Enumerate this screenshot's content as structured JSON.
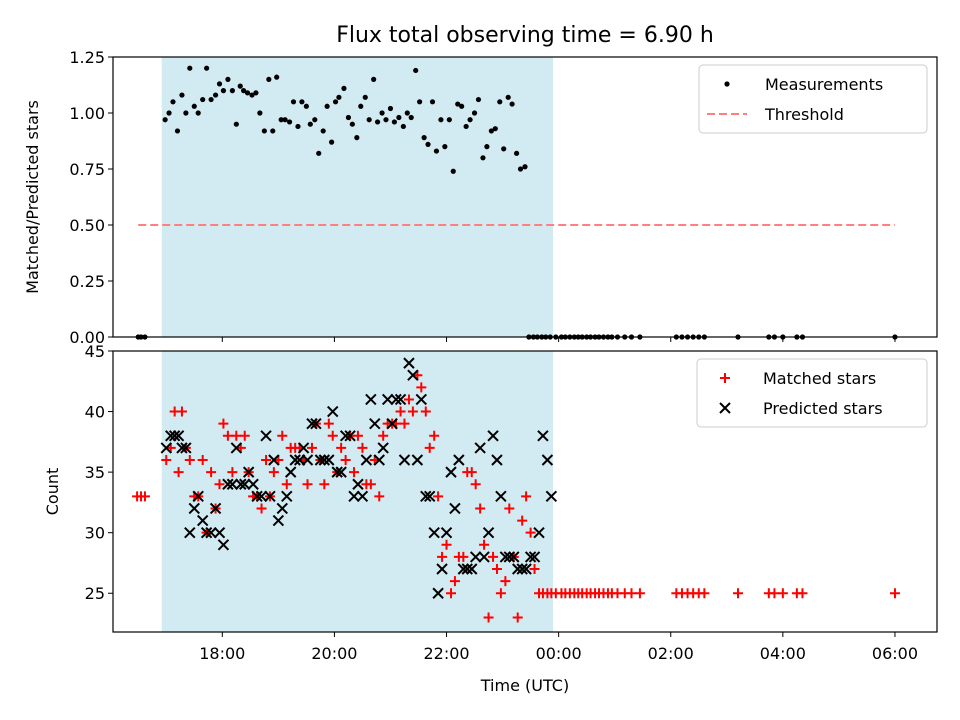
{
  "figure_title": "Flux total observing time = 6.90 h",
  "colors": {
    "span": "#add8e6",
    "measurement": "#000000",
    "threshold": "#ff7f7f",
    "matched": "#ff0000",
    "predicted": "#000000"
  },
  "chart_data": [
    {
      "type": "scatter",
      "title": "Flux total observing time = 6.90 h",
      "xlabel": "",
      "ylabel": "Matched/Predicted stars",
      "xlim": [
        16.05,
        30.75
      ],
      "ylim": [
        0,
        1.25
      ],
      "yticks": [
        "0.00",
        "0.25",
        "0.50",
        "0.75",
        "1.00",
        "1.25"
      ],
      "ytick_values": [
        0,
        0.25,
        0.5,
        0.75,
        1.0,
        1.25
      ],
      "grid": false,
      "legend_position": "top-right",
      "shaded_span": [
        16.92,
        23.9
      ],
      "series": [
        {
          "name": "Measurements",
          "marker": "dot",
          "x": [
            16.5,
            16.55,
            16.62,
            16.98,
            17.05,
            17.12,
            17.2,
            17.28,
            17.35,
            17.42,
            17.5,
            17.57,
            17.65,
            17.72,
            17.8,
            17.88,
            17.95,
            18.02,
            18.1,
            18.18,
            18.25,
            18.32,
            18.38,
            18.45,
            18.53,
            18.6,
            18.67,
            18.75,
            18.83,
            18.9,
            18.97,
            19.05,
            19.12,
            19.2,
            19.27,
            19.35,
            19.42,
            19.5,
            19.57,
            19.65,
            19.72,
            19.8,
            19.87,
            19.95,
            20.02,
            20.08,
            20.17,
            20.25,
            20.32,
            20.4,
            20.47,
            20.55,
            20.62,
            20.7,
            20.77,
            20.85,
            20.92,
            21.0,
            21.07,
            21.15,
            21.23,
            21.3,
            21.37,
            21.45,
            21.52,
            21.6,
            21.67,
            21.75,
            21.82,
            21.9,
            21.97,
            22.05,
            22.12,
            22.2,
            22.27,
            22.35,
            22.42,
            22.5,
            22.57,
            22.65,
            22.72,
            22.8,
            22.87,
            22.95,
            23.02,
            23.1,
            23.17,
            23.25,
            23.32,
            23.4,
            23.47,
            23.55,
            23.62,
            23.7,
            23.77,
            23.85,
            23.95,
            24.05,
            24.12,
            24.2,
            24.28,
            24.35,
            24.42,
            24.5,
            24.57,
            24.65,
            24.72,
            24.8,
            24.88,
            24.95,
            25.05,
            25.18,
            25.3,
            25.45,
            26.1,
            26.2,
            26.3,
            26.4,
            26.5,
            26.6,
            27.2,
            27.75,
            27.85,
            28.0,
            28.25,
            28.35,
            30.0
          ],
          "y": [
            0,
            0,
            0,
            0.97,
            1.0,
            1.05,
            0.92,
            1.08,
            1.0,
            1.2,
            1.03,
            1.0,
            1.06,
            1.2,
            1.06,
            1.08,
            1.13,
            1.1,
            1.15,
            1.1,
            0.95,
            1.12,
            1.1,
            1.09,
            1.08,
            1.09,
            1.0,
            0.92,
            1.15,
            0.92,
            1.16,
            0.97,
            0.97,
            0.96,
            1.05,
            0.94,
            1.05,
            1.03,
            0.95,
            0.97,
            0.82,
            0.92,
            1.03,
            0.87,
            1.05,
            1.07,
            1.11,
            0.98,
            0.95,
            0.89,
            1.03,
            1.07,
            0.97,
            1.15,
            0.96,
            1.0,
            0.97,
            1.02,
            0.96,
            0.98,
            0.94,
            1.0,
            0.98,
            1.19,
            1.05,
            0.89,
            0.86,
            1.05,
            0.83,
            0.97,
            0.85,
            0.97,
            0.74,
            1.04,
            1.03,
            0.94,
            0.97,
            1.0,
            1.06,
            0.8,
            0.85,
            0.92,
            0.93,
            1.05,
            0.84,
            1.07,
            1.04,
            0.82,
            0.75,
            0.76,
            0,
            0,
            0,
            0,
            0,
            0,
            0,
            0,
            0,
            0,
            0,
            0,
            0,
            0,
            0,
            0,
            0,
            0,
            0,
            0,
            0,
            0,
            0,
            0,
            0,
            0,
            0,
            0,
            0,
            0,
            0,
            0,
            0,
            0,
            0,
            0,
            0
          ]
        },
        {
          "name": "Threshold",
          "marker": "dashed-line",
          "x": [
            16.5,
            30.0
          ],
          "y": [
            0.5,
            0.5
          ]
        }
      ]
    },
    {
      "type": "scatter",
      "title": "",
      "xlabel": "Time (UTC)",
      "ylabel": "Count",
      "xlim": [
        16.05,
        30.75
      ],
      "ylim": [
        21.8,
        45
      ],
      "xticks": [
        "18:00",
        "20:00",
        "22:00",
        "00:00",
        "02:00",
        "04:00",
        "06:00"
      ],
      "xtick_values": [
        18,
        20,
        22,
        24,
        26,
        28,
        30
      ],
      "yticks": [
        "25",
        "30",
        "35",
        "40",
        "45"
      ],
      "ytick_values": [
        25,
        30,
        35,
        40,
        45
      ],
      "grid": false,
      "legend_position": "top-right",
      "shaded_span": [
        16.92,
        23.9
      ],
      "series": [
        {
          "name": "Matched stars",
          "marker": "plus",
          "x": [
            16.48,
            16.55,
            16.62,
            17.0,
            17.08,
            17.15,
            17.22,
            17.28,
            17.35,
            17.42,
            17.5,
            17.57,
            17.65,
            17.72,
            17.8,
            17.88,
            17.95,
            18.02,
            18.1,
            18.18,
            18.25,
            18.33,
            18.4,
            18.47,
            18.55,
            18.62,
            18.7,
            18.78,
            18.85,
            18.92,
            19.0,
            19.07,
            19.15,
            19.22,
            19.3,
            19.38,
            19.45,
            19.52,
            19.6,
            19.67,
            19.75,
            19.82,
            19.9,
            19.97,
            20.05,
            20.12,
            20.2,
            20.28,
            20.35,
            20.42,
            20.5,
            20.57,
            20.65,
            20.72,
            20.8,
            20.87,
            20.95,
            21.03,
            21.1,
            21.18,
            21.25,
            21.33,
            21.4,
            21.48,
            21.55,
            21.63,
            21.7,
            21.78,
            21.85,
            21.92,
            22.0,
            22.08,
            22.15,
            22.22,
            22.3,
            22.37,
            22.45,
            22.52,
            22.6,
            22.67,
            22.75,
            22.83,
            22.9,
            22.97,
            23.05,
            23.12,
            23.2,
            23.27,
            23.35,
            23.42,
            23.5,
            23.57,
            23.65,
            23.72,
            23.8,
            23.87,
            23.95,
            24.05,
            24.12,
            24.2,
            24.28,
            24.35,
            24.42,
            24.5,
            24.57,
            24.65,
            24.72,
            24.8,
            24.88,
            24.95,
            25.05,
            25.18,
            25.3,
            25.45,
            26.1,
            26.2,
            26.3,
            26.4,
            26.5,
            26.6,
            27.2,
            27.75,
            27.85,
            28.0,
            28.25,
            28.35,
            30.0
          ],
          "y": [
            33,
            33,
            33,
            36,
            37,
            40,
            35,
            40,
            37,
            36,
            33,
            33,
            36,
            30,
            35,
            32,
            34,
            39,
            38,
            35,
            38,
            37,
            38,
            35,
            33,
            33,
            32,
            36,
            33,
            35,
            36,
            38,
            34,
            37,
            37,
            37,
            36,
            34,
            37,
            39,
            36,
            34,
            39,
            38,
            35,
            37,
            36,
            38,
            35,
            38,
            37,
            34,
            34,
            36,
            33,
            38,
            39,
            39,
            39,
            40,
            39,
            41,
            40,
            43,
            42,
            40,
            37,
            38,
            33,
            28,
            29,
            25,
            26,
            28,
            28,
            35,
            35,
            34,
            32,
            29,
            23,
            28,
            27,
            25,
            26,
            32,
            28,
            23,
            31,
            33,
            30,
            27,
            25,
            25,
            25,
            25,
            25,
            25,
            25,
            25,
            25,
            25,
            25,
            25,
            25,
            25,
            25,
            25,
            25,
            25,
            25,
            25,
            25,
            25,
            25,
            25,
            25,
            25,
            25,
            25,
            25,
            25,
            25,
            25,
            25,
            25,
            25
          ]
        },
        {
          "name": "Predicted stars",
          "marker": "x",
          "x": [
            17.0,
            17.08,
            17.15,
            17.22,
            17.28,
            17.35,
            17.42,
            17.5,
            17.57,
            17.65,
            17.72,
            17.8,
            17.88,
            17.95,
            18.02,
            18.1,
            18.18,
            18.25,
            18.33,
            18.4,
            18.47,
            18.55,
            18.62,
            18.7,
            18.78,
            18.85,
            18.92,
            19.0,
            19.07,
            19.15,
            19.22,
            19.3,
            19.38,
            19.45,
            19.52,
            19.6,
            19.67,
            19.75,
            19.82,
            19.9,
            19.97,
            20.05,
            20.12,
            20.2,
            20.28,
            20.35,
            20.42,
            20.5,
            20.57,
            20.65,
            20.72,
            20.8,
            20.87,
            20.95,
            21.03,
            21.1,
            21.18,
            21.25,
            21.33,
            21.4,
            21.48,
            21.55,
            21.63,
            21.7,
            21.78,
            21.85,
            21.92,
            22.0,
            22.08,
            22.15,
            22.22,
            22.3,
            22.37,
            22.45,
            22.52,
            22.6,
            22.67,
            22.75,
            22.83,
            22.9,
            22.97,
            23.05,
            23.12,
            23.2,
            23.27,
            23.35,
            23.42,
            23.5,
            23.57,
            23.65,
            23.72,
            23.8,
            23.87
          ],
          "y": [
            37,
            38,
            38,
            38,
            37,
            37,
            30,
            32,
            33,
            31,
            30,
            30,
            32,
            30,
            29,
            34,
            34,
            37,
            34,
            34,
            35,
            34,
            33,
            33,
            38,
            33,
            36,
            31,
            32,
            33,
            35,
            36,
            36,
            37,
            36,
            39,
            39,
            36,
            36,
            36,
            40,
            35,
            35,
            38,
            38,
            33,
            34,
            33,
            36,
            41,
            39,
            36,
            37,
            41,
            39,
            41,
            41,
            36,
            44,
            43,
            36,
            41,
            33,
            33,
            30,
            25,
            27,
            30,
            35,
            32,
            36,
            27,
            27,
            27,
            28,
            37,
            28,
            30,
            38,
            36,
            33,
            28,
            28,
            28,
            27,
            27,
            27,
            28,
            28,
            30,
            38,
            36,
            33
          ]
        }
      ]
    }
  ]
}
